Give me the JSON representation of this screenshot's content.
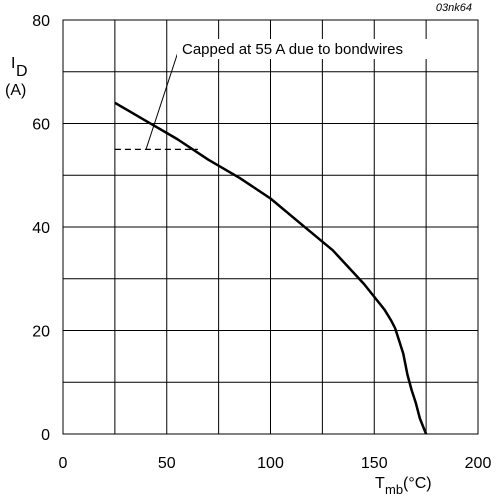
{
  "figure_id": "03nk64",
  "chart_data": {
    "type": "line",
    "ylabel_symbol": "I",
    "ylabel_subscript": "D",
    "ylabel_unit": "(A)",
    "xlabel_symbol": "T",
    "xlabel_subscript": "mb",
    "xlabel_unit": "(°C)",
    "xlim": [
      0,
      200
    ],
    "ylim": [
      0,
      80
    ],
    "x_ticks": [
      0,
      50,
      100,
      150,
      200
    ],
    "y_ticks": [
      0,
      20,
      40,
      60,
      80
    ],
    "x_tick_labels": [
      "0",
      "50",
      "100",
      "150",
      "200"
    ],
    "y_tick_labels": [
      "0",
      "20",
      "40",
      "60",
      "80"
    ],
    "x_grid_step": 25,
    "y_grid_step": 10,
    "grid": true,
    "series": [
      {
        "style": "solid",
        "x": [
          25,
          40,
          55,
          70,
          85,
          100,
          115,
          130,
          145,
          150,
          155,
          158,
          160,
          162,
          164,
          166,
          168,
          170,
          172,
          175
        ],
        "y": [
          64,
          60.5,
          57,
          53,
          49.5,
          45.5,
          40.5,
          35.5,
          29,
          26.5,
          24,
          22,
          20.5,
          18,
          15.5,
          11.5,
          8.5,
          6,
          3,
          0
        ]
      },
      {
        "style": "dashed",
        "x": [
          25,
          65
        ],
        "y": [
          55,
          55
        ]
      }
    ],
    "annotation": {
      "text": "Capped at 55 A due to bondwires",
      "pointer_target": [
        40,
        55
      ]
    }
  }
}
